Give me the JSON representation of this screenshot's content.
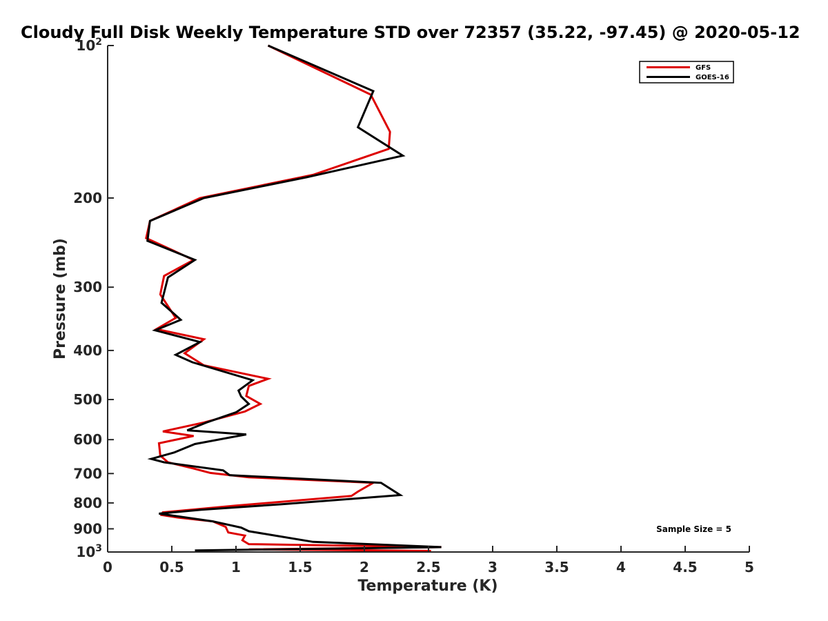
{
  "chart_data": {
    "type": "line",
    "title": "Cloudy Full Disk Weekly Temperature STD over 72357 (35.22, -97.45) @ 2020-05-12",
    "xlabel": "Temperature (K)",
    "ylabel": "Pressure (mb)",
    "xlim": [
      0,
      5
    ],
    "ylim": [
      100,
      1000
    ],
    "yscale": "log",
    "y_reversed": true,
    "grid": false,
    "legend_position": "top-right",
    "x_ticks": [
      0,
      0.5,
      1,
      1.5,
      2,
      2.5,
      3,
      3.5,
      4,
      4.5,
      5
    ],
    "x_tick_labels": [
      "0",
      "0.5",
      "1",
      "1.5",
      "2",
      "2.5",
      "3",
      "3.5",
      "4",
      "4.5",
      "5"
    ],
    "y_ticks": [
      100,
      200,
      300,
      400,
      500,
      600,
      700,
      800,
      900,
      1000
    ],
    "y_tick_labels": [
      {
        "base": "10",
        "exp": "2"
      },
      {
        "base": "200",
        "exp": ""
      },
      {
        "base": "300",
        "exp": ""
      },
      {
        "base": "400",
        "exp": ""
      },
      {
        "base": "500",
        "exp": ""
      },
      {
        "base": "600",
        "exp": ""
      },
      {
        "base": "700",
        "exp": ""
      },
      {
        "base": "800",
        "exp": ""
      },
      {
        "base": "900",
        "exp": ""
      },
      {
        "base": "10",
        "exp": "3"
      }
    ],
    "annotation": "Sample Size = 5",
    "series": [
      {
        "name": "GFS",
        "color": "#dd0000",
        "points": [
          [
            1.25,
            100
          ],
          [
            2.05,
            125
          ],
          [
            2.2,
            148
          ],
          [
            2.19,
            160
          ],
          [
            1.6,
            180
          ],
          [
            0.72,
            200
          ],
          [
            0.33,
            222
          ],
          [
            0.3,
            240
          ],
          [
            0.67,
            265
          ],
          [
            0.44,
            285
          ],
          [
            0.41,
            310
          ],
          [
            0.53,
            345
          ],
          [
            0.38,
            363
          ],
          [
            0.75,
            380
          ],
          [
            0.6,
            405
          ],
          [
            0.75,
            428
          ],
          [
            1.25,
            455
          ],
          [
            1.1,
            470
          ],
          [
            1.08,
            492
          ],
          [
            1.19,
            510
          ],
          [
            1.07,
            528
          ],
          [
            0.75,
            555
          ],
          [
            0.43,
            578
          ],
          [
            0.67,
            590
          ],
          [
            0.4,
            610
          ],
          [
            0.41,
            645
          ],
          [
            0.47,
            665
          ],
          [
            0.66,
            683
          ],
          [
            0.8,
            698
          ],
          [
            1.1,
            712
          ],
          [
            2.07,
            730
          ],
          [
            1.95,
            760
          ],
          [
            1.9,
            775
          ],
          [
            1.0,
            810
          ],
          [
            0.43,
            835
          ],
          [
            0.42,
            845
          ],
          [
            0.55,
            855
          ],
          [
            0.82,
            870
          ],
          [
            0.92,
            892
          ],
          [
            0.94,
            915
          ],
          [
            1.07,
            928
          ],
          [
            1.05,
            948
          ],
          [
            1.1,
            965
          ],
          [
            2.6,
            978
          ],
          [
            1.1,
            988
          ],
          [
            2.52,
            995
          ]
        ]
      },
      {
        "name": "GOES-16",
        "color": "#000000",
        "points": [
          [
            1.25,
            100
          ],
          [
            2.07,
            123
          ],
          [
            1.95,
            145
          ],
          [
            2.3,
            165
          ],
          [
            1.55,
            182
          ],
          [
            0.75,
            200
          ],
          [
            0.33,
            222
          ],
          [
            0.31,
            243
          ],
          [
            0.68,
            265
          ],
          [
            0.47,
            287
          ],
          [
            0.42,
            322
          ],
          [
            0.57,
            348
          ],
          [
            0.37,
            365
          ],
          [
            0.72,
            385
          ],
          [
            0.53,
            408
          ],
          [
            0.66,
            422
          ],
          [
            1.13,
            458
          ],
          [
            1.02,
            480
          ],
          [
            1.04,
            493
          ],
          [
            1.1,
            510
          ],
          [
            1.0,
            530
          ],
          [
            0.77,
            555
          ],
          [
            0.62,
            575
          ],
          [
            1.08,
            586
          ],
          [
            0.68,
            612
          ],
          [
            0.52,
            636
          ],
          [
            0.34,
            655
          ],
          [
            0.44,
            665
          ],
          [
            0.9,
            690
          ],
          [
            0.95,
            705
          ],
          [
            2.13,
            730
          ],
          [
            2.28,
            772
          ],
          [
            1.35,
            805
          ],
          [
            0.73,
            825
          ],
          [
            0.4,
            840
          ],
          [
            0.82,
            870
          ],
          [
            1.04,
            895
          ],
          [
            1.1,
            910
          ],
          [
            1.27,
            925
          ],
          [
            1.6,
            955
          ],
          [
            2.6,
            978
          ],
          [
            0.68,
            993
          ]
        ]
      }
    ]
  }
}
